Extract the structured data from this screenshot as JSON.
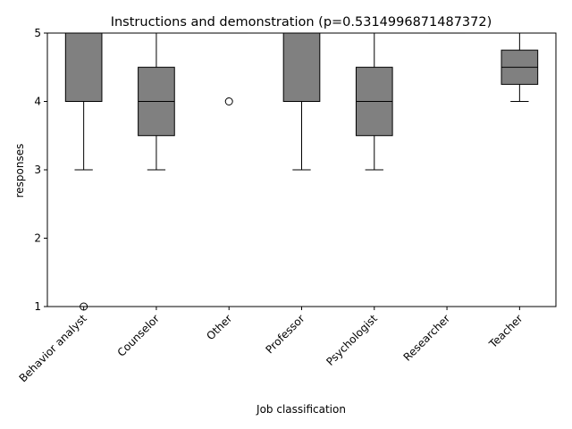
{
  "chart_data": {
    "type": "box",
    "title": "Instructions and demonstration (p=0.5314996871487372)",
    "xlabel": "Job classification",
    "ylabel": "responses",
    "ylim": [
      1,
      5
    ],
    "yticks": [
      "1",
      "2",
      "3",
      "4",
      "5"
    ],
    "grid": false,
    "box_color": "#808080",
    "categories": [
      "Behavior analyst",
      "Counselor",
      "Other",
      "Professor",
      "Psychologist",
      "Researcher",
      "Teacher"
    ],
    "boxes": [
      {
        "q1": 4,
        "median": 5,
        "q3": 5,
        "whisker_low": 3,
        "whisker_high": 5,
        "outliers": [
          1
        ]
      },
      {
        "q1": 3.5,
        "median": 4,
        "q3": 4.5,
        "whisker_low": 3,
        "whisker_high": 5,
        "outliers": []
      },
      {
        "q1": 5,
        "median": 5,
        "q3": 5,
        "whisker_low": 5,
        "whisker_high": 5,
        "outliers": [
          4
        ]
      },
      {
        "q1": 4,
        "median": 5,
        "q3": 5,
        "whisker_low": 3,
        "whisker_high": 5,
        "outliers": []
      },
      {
        "q1": 3.5,
        "median": 4,
        "q3": 4.5,
        "whisker_low": 3,
        "whisker_high": 5,
        "outliers": []
      },
      {
        "q1": 5,
        "median": 5,
        "q3": 5,
        "whisker_low": 5,
        "whisker_high": 5,
        "outliers": []
      },
      {
        "q1": 4.25,
        "median": 4.5,
        "q3": 4.75,
        "whisker_low": 4,
        "whisker_high": 5,
        "outliers": []
      }
    ]
  }
}
